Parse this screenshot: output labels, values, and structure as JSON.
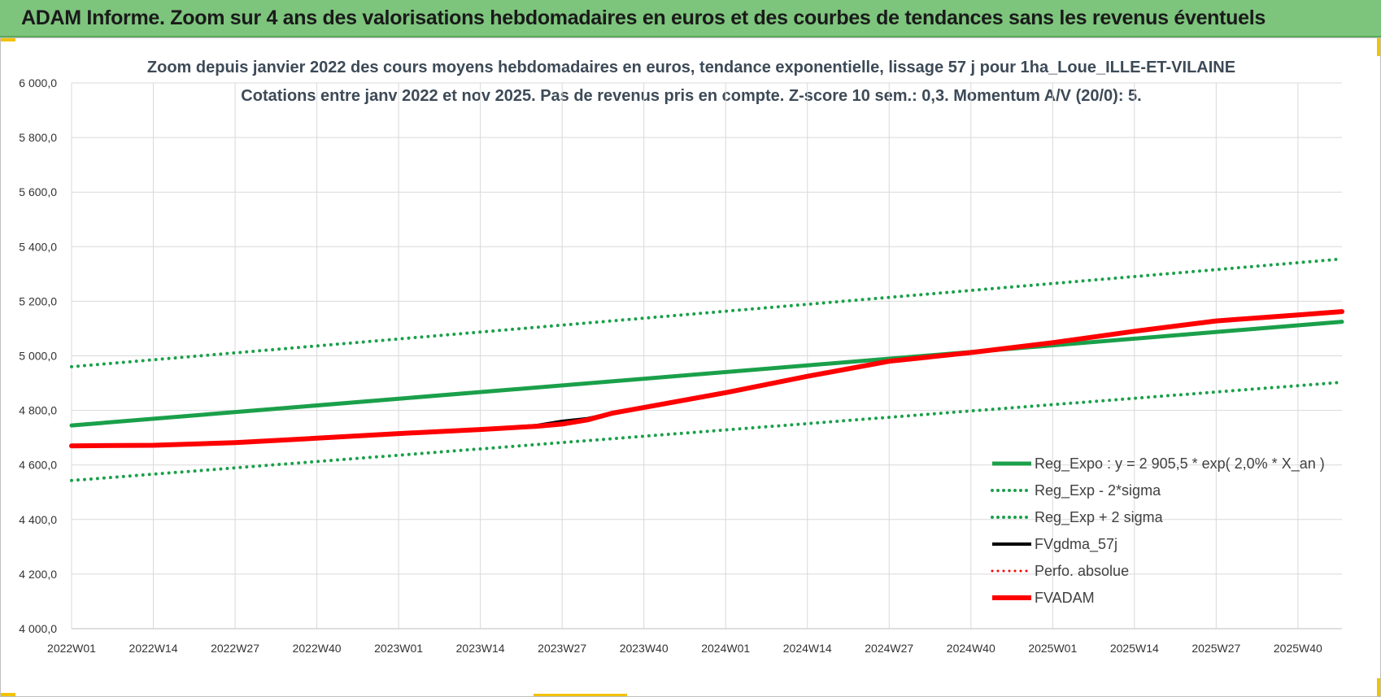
{
  "banner": {
    "title": "ADAM Informe. Zoom sur 4 ans des valorisations hebdomadaires en euros et des courbes de tendances sans les revenus éventuels",
    "color": "#7dc47d"
  },
  "chart_data": {
    "type": "line",
    "title": "Zoom depuis janvier 2022 des cours moyens hebdomadaires en euros, tendance exponentielle, lissage 57 j pour 1ha_Loue_ILLE-ET-VILAINE",
    "subtitle": "Cotations entre janv 2022 et nov 2025. Pas de revenus pris en compte. Z-score 10 sem.: 0,3. Momentum A/V (20/0): 5.",
    "xlabel": "",
    "ylabel": "",
    "ylim": [
      4000,
      6000
    ],
    "y_ticks": [
      "6 000,0",
      "5 800,0",
      "5 600,0",
      "5 400,0",
      "5 200,0",
      "5 000,0",
      "4 800,0",
      "4 600,0",
      "4 400,0",
      "4 200,0",
      "4 000,0"
    ],
    "x_ticks": [
      "2022W01",
      "2022W14",
      "2022W27",
      "2022W40",
      "2023W01",
      "2023W14",
      "2023W27",
      "2023W40",
      "2024W01",
      "2024W14",
      "2024W27",
      "2024W40",
      "2025W01",
      "2025W14",
      "2025W27",
      "2025W40"
    ],
    "x_end_index": 202,
    "grid": true,
    "legend_position": "bottom-right",
    "series": [
      {
        "name": "Reg_Expo : y = 2 905,5 * exp( 2,0% *  X_an )",
        "color": "#1aa04a",
        "style": "solid",
        "width": 5,
        "points": [
          [
            0,
            4745
          ],
          [
            202,
            5125
          ]
        ]
      },
      {
        "name": "Reg_Exp - 2*sigma",
        "color": "#1aa04a",
        "style": "dotted",
        "width": 4,
        "points": [
          [
            0,
            4543
          ],
          [
            202,
            4903
          ]
        ]
      },
      {
        "name": "Reg_Exp + 2 sigma",
        "color": "#1aa04a",
        "style": "dotted",
        "width": 4,
        "points": [
          [
            0,
            4960
          ],
          [
            202,
            5355
          ]
        ]
      },
      {
        "name": "FVgdma_57j",
        "color": "#000000",
        "style": "solid",
        "width": 4,
        "points": [
          [
            0,
            4670
          ],
          [
            13,
            4672
          ],
          [
            26,
            4682
          ],
          [
            39,
            4698
          ],
          [
            52,
            4715
          ],
          [
            65,
            4730
          ],
          [
            74,
            4745
          ],
          [
            78,
            4760
          ],
          [
            82,
            4770
          ],
          [
            86,
            4790
          ],
          [
            104,
            4865
          ],
          [
            117,
            4925
          ],
          [
            130,
            4980
          ],
          [
            143,
            5012
          ],
          [
            156,
            5048
          ],
          [
            169,
            5090
          ],
          [
            182,
            5128
          ],
          [
            195,
            5150
          ],
          [
            202,
            5162
          ]
        ]
      },
      {
        "name": "Perfo. absolue",
        "color": "#ff0000",
        "style": "dotted",
        "width": 3,
        "points": []
      },
      {
        "name": "FVADAM",
        "color": "#ff0000",
        "style": "solid",
        "width": 6,
        "points": [
          [
            0,
            4670
          ],
          [
            13,
            4672
          ],
          [
            26,
            4682
          ],
          [
            39,
            4698
          ],
          [
            52,
            4715
          ],
          [
            65,
            4730
          ],
          [
            74,
            4742
          ],
          [
            78,
            4750
          ],
          [
            82,
            4765
          ],
          [
            86,
            4790
          ],
          [
            104,
            4865
          ],
          [
            117,
            4925
          ],
          [
            130,
            4980
          ],
          [
            143,
            5012
          ],
          [
            156,
            5048
          ],
          [
            169,
            5090
          ],
          [
            182,
            5128
          ],
          [
            195,
            5150
          ],
          [
            202,
            5162
          ]
        ]
      }
    ]
  }
}
